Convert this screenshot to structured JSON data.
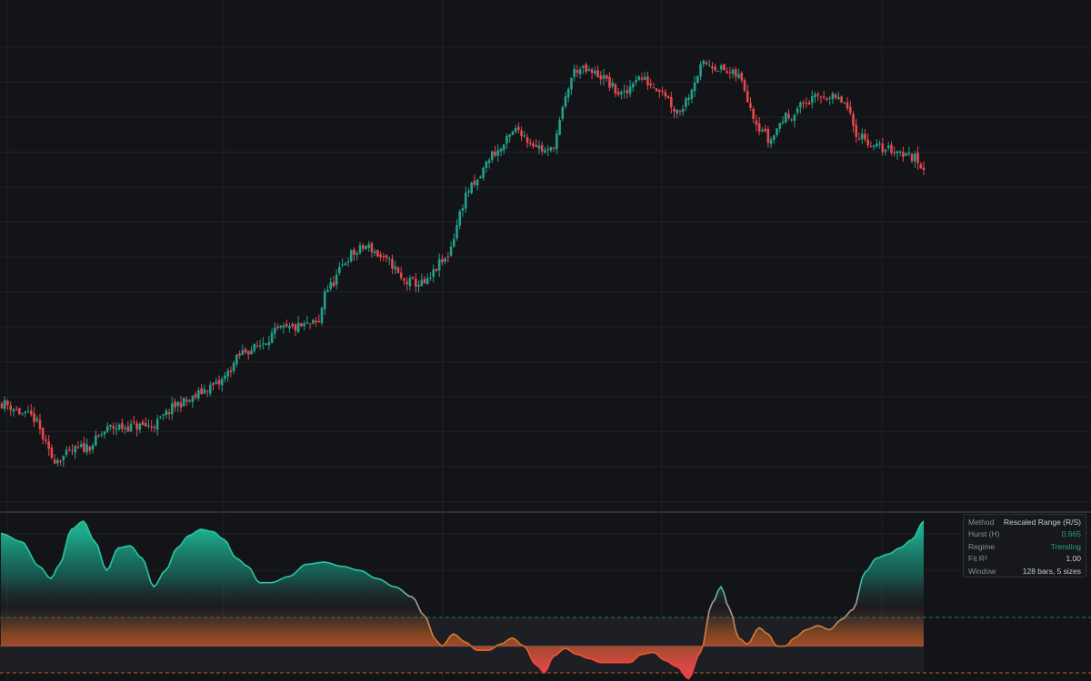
{
  "colors": {
    "background": "#131418",
    "grid": "#1f2127",
    "up": "#22a08a",
    "down": "#e5484d",
    "indicator_fill_high": "#1fb493",
    "indicator_fill_low": "#e06b1f",
    "line_neutral": "#9ea2a8",
    "accent": "#1fa386"
  },
  "info": {
    "method_label": "Method",
    "method_value": "Rescaled Range (R/S)",
    "hurst_label": "Hurst (H)",
    "hurst_value": "0.665",
    "regime_label": "Regime",
    "regime_value": "Trending",
    "fit_label": "Fit R²",
    "fit_value": "1.00",
    "window_label": "Window",
    "window_value": "128 bars, 5 sizes"
  },
  "chart_data": [
    {
      "type": "candlestick",
      "title": "",
      "anchors": [
        [
          0,
          59.5
        ],
        [
          10,
          58.3
        ],
        [
          18,
          54.6
        ],
        [
          28,
          55.6
        ],
        [
          38,
          57.4
        ],
        [
          50,
          57.5
        ],
        [
          62,
          59.6
        ],
        [
          72,
          61.0
        ],
        [
          84,
          64.2
        ],
        [
          96,
          66.0
        ],
        [
          108,
          66.5
        ],
        [
          110,
          69.5
        ],
        [
          120,
          72.7
        ],
        [
          124,
          73.3
        ],
        [
          132,
          71.9
        ],
        [
          137,
          70.2
        ],
        [
          144,
          70.0
        ],
        [
          150,
          71.9
        ],
        [
          160,
          78.5
        ],
        [
          168,
          81.6
        ],
        [
          176,
          83.6
        ],
        [
          180,
          82.5
        ],
        [
          186,
          81.6
        ],
        [
          196,
          88.9
        ],
        [
          202,
          88.5
        ],
        [
          212,
          86.6
        ],
        [
          216,
          88.2
        ],
        [
          224,
          87.3
        ],
        [
          230,
          85.3
        ],
        [
          240,
          89.4
        ],
        [
          250,
          88.4
        ],
        [
          259,
          83.7
        ],
        [
          261,
          82.6
        ],
        [
          267,
          84.7
        ],
        [
          275,
          86.1
        ],
        [
          280,
          86.6
        ],
        [
          286,
          86.1
        ],
        [
          292,
          83.1
        ],
        [
          298,
          82.0
        ],
        [
          304,
          81.8
        ],
        [
          310,
          81.2
        ],
        [
          314,
          80.4
        ]
      ],
      "num_bars": 315,
      "seed": 11,
      "ylim": [
        50,
        95
      ]
    },
    {
      "type": "area",
      "series_type": "hurst",
      "anchors": [
        [
          0,
          0.706
        ],
        [
          7,
          0.702
        ],
        [
          13,
          0.69
        ],
        [
          17,
          0.684
        ],
        [
          20,
          0.691
        ],
        [
          24,
          0.708
        ],
        [
          28,
          0.712
        ],
        [
          32,
          0.702
        ],
        [
          36,
          0.688
        ],
        [
          40,
          0.699
        ],
        [
          44,
          0.7
        ],
        [
          48,
          0.694
        ],
        [
          52,
          0.68
        ],
        [
          56,
          0.688
        ],
        [
          60,
          0.699
        ],
        [
          64,
          0.705
        ],
        [
          68,
          0.708
        ],
        [
          72,
          0.707
        ],
        [
          76,
          0.703
        ],
        [
          80,
          0.694
        ],
        [
          84,
          0.69
        ],
        [
          88,
          0.682
        ],
        [
          92,
          0.682
        ],
        [
          98,
          0.685
        ],
        [
          104,
          0.691
        ],
        [
          110,
          0.692
        ],
        [
          116,
          0.69
        ],
        [
          122,
          0.688
        ],
        [
          128,
          0.684
        ],
        [
          134,
          0.68
        ],
        [
          140,
          0.675
        ],
        [
          144,
          0.666
        ],
        [
          148,
          0.654
        ],
        [
          150,
          0.651
        ],
        [
          154,
          0.657
        ],
        [
          158,
          0.653
        ],
        [
          162,
          0.649
        ],
        [
          166,
          0.649
        ],
        [
          170,
          0.652
        ],
        [
          174,
          0.655
        ],
        [
          178,
          0.651
        ],
        [
          182,
          0.642
        ],
        [
          185,
          0.638
        ],
        [
          188,
          0.646
        ],
        [
          192,
          0.65
        ],
        [
          196,
          0.647
        ],
        [
          200,
          0.645
        ],
        [
          204,
          0.643
        ],
        [
          208,
          0.643
        ],
        [
          214,
          0.643
        ],
        [
          218,
          0.647
        ],
        [
          222,
          0.648
        ],
        [
          226,
          0.644
        ],
        [
          230,
          0.641
        ],
        [
          234,
          0.635
        ],
        [
          238,
          0.648
        ],
        [
          242,
          0.672
        ],
        [
          245,
          0.68
        ],
        [
          248,
          0.669
        ],
        [
          251,
          0.655
        ],
        [
          254,
          0.652
        ],
        [
          258,
          0.66
        ],
        [
          261,
          0.657
        ],
        [
          264,
          0.651
        ],
        [
          267,
          0.651
        ],
        [
          270,
          0.655
        ],
        [
          274,
          0.659
        ],
        [
          278,
          0.661
        ],
        [
          282,
          0.659
        ],
        [
          286,
          0.664
        ],
        [
          290,
          0.669
        ],
        [
          294,
          0.687
        ],
        [
          298,
          0.694
        ],
        [
          302,
          0.696
        ],
        [
          306,
          0.699
        ],
        [
          310,
          0.703
        ],
        [
          314,
          0.712
        ]
      ],
      "num_bars": 315,
      "ylim": [
        0.634,
        0.716
      ],
      "threshold_upper": 0.665,
      "threshold_mid": 0.651,
      "threshold_lower": 0.638
    }
  ]
}
